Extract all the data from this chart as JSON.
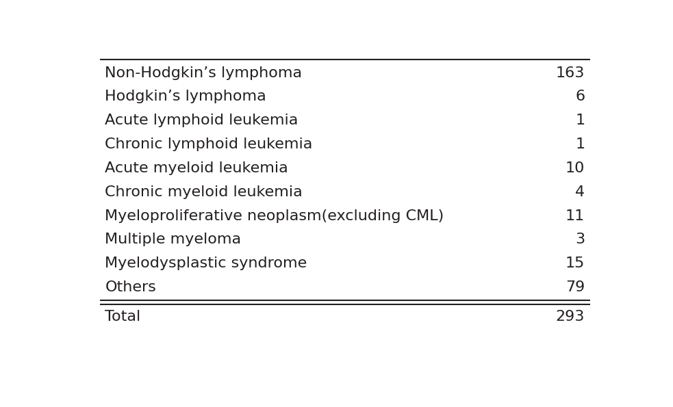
{
  "rows": [
    [
      "Non-Hodgkin’s lymphoma",
      "163"
    ],
    [
      "Hodgkin’s lymphoma",
      "6"
    ],
    [
      "Acute lymphoid leukemia",
      "1"
    ],
    [
      "Chronic lymphoid leukemia",
      "1"
    ],
    [
      "Acute myeloid leukemia",
      "10"
    ],
    [
      "Chronic myeloid leukemia",
      "4"
    ],
    [
      "Myeloproliferative neoplasm(excluding CML)",
      "11"
    ],
    [
      "Multiple myeloma",
      "3"
    ],
    [
      "Myelodysplastic syndrome",
      "15"
    ],
    [
      "Others",
      "79"
    ]
  ],
  "total_row": [
    "Total",
    "293"
  ],
  "background_color": "#ffffff",
  "text_color": "#231f20",
  "font_size": 16,
  "total_font_size": 16,
  "line_color": "#231f20",
  "fig_width": 9.83,
  "fig_height": 5.95
}
